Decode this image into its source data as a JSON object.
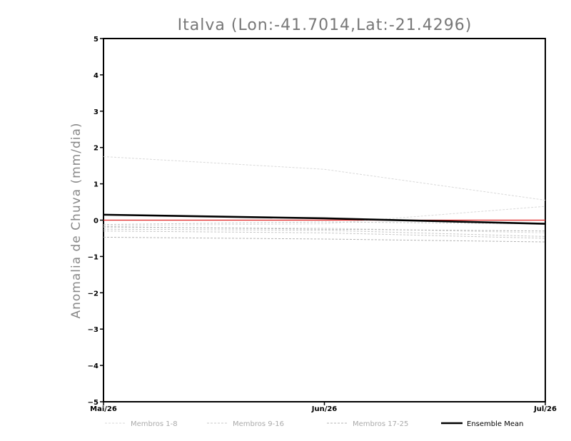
{
  "chart_data": {
    "type": "line",
    "title": "Italva (Lon:-41.7014,Lat:-21.4296)",
    "xlabel": "",
    "ylabel": "Anomalia de Chuva (mm/dia)",
    "categories": [
      "Mai/26",
      "Jun/26",
      "Jul/26"
    ],
    "yticks": [
      "5",
      "4",
      "3",
      "2",
      "1",
      "0",
      "-1",
      "-2",
      "-3",
      "-4",
      "-5"
    ],
    "ylim": [
      -5,
      5
    ],
    "grid": false,
    "legend_position": "bottom",
    "zero_line_color": "#e02020",
    "series": [
      {
        "legend_group": 0,
        "values": [
          1.75,
          1.4,
          0.55
        ]
      },
      {
        "legend_group": 0,
        "values": [
          -0.15,
          -0.1,
          0.38
        ]
      },
      {
        "legend_group": 0,
        "values": [
          -0.2,
          -0.22,
          -0.35
        ]
      },
      {
        "legend_group": 1,
        "values": [
          -0.25,
          -0.28,
          -0.45
        ]
      },
      {
        "legend_group": 1,
        "values": [
          -0.12,
          -0.05,
          -0.1
        ]
      },
      {
        "legend_group": 1,
        "values": [
          -0.3,
          -0.35,
          -0.5
        ]
      },
      {
        "legend_group": 2,
        "values": [
          -0.47,
          -0.52,
          -0.6
        ]
      },
      {
        "legend_group": 2,
        "values": [
          -0.18,
          -0.25,
          -0.3
        ]
      },
      {
        "name": "Ensemble Mean",
        "values": [
          0.15,
          0.05,
          -0.1
        ]
      }
    ],
    "legend": [
      {
        "label": "Membros 1-8",
        "color": "#d9d9d9",
        "dashed": true
      },
      {
        "label": "Membros 9-16",
        "color": "#c8c8c8",
        "dashed": true
      },
      {
        "label": "Membros 17-25",
        "color": "#b4b4b4",
        "dashed": true
      },
      {
        "label": "Ensemble Mean",
        "color": "#000000",
        "dashed": false
      }
    ]
  }
}
